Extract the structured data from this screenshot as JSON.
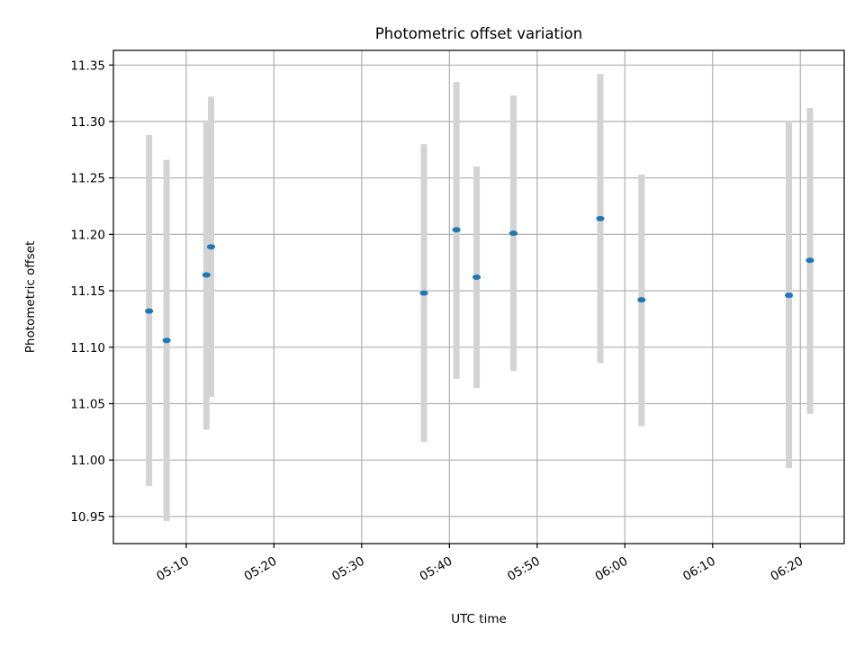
{
  "chart_data": {
    "type": "scatter",
    "title": "Photometric offset variation",
    "xlabel": "UTC time",
    "ylabel": "Photometric offset",
    "x_tick_labels": [
      "05:10",
      "05:20",
      "05:30",
      "05:40",
      "05:50",
      "06:00",
      "06:10",
      "06:20"
    ],
    "y_tick_labels": [
      "10.95",
      "11.00",
      "11.05",
      "11.10",
      "11.15",
      "11.20",
      "11.25",
      "11.30",
      "11.35"
    ],
    "grid": true,
    "series": [
      {
        "marker_color": "#1f77b4",
        "errorbar_color": "#d3d3d3",
        "points": [
          {
            "time": "05:05:46",
            "y": 11.132,
            "ymin": 10.977,
            "ymax": 11.288
          },
          {
            "time": "05:07:46",
            "y": 11.106,
            "ymin": 10.946,
            "ymax": 11.266
          },
          {
            "time": "05:12:18",
            "y": 11.164,
            "ymin": 11.027,
            "ymax": 11.301
          },
          {
            "time": "05:12:50",
            "y": 11.189,
            "ymin": 11.056,
            "ymax": 11.322
          },
          {
            "time": "05:37:06",
            "y": 11.148,
            "ymin": 11.016,
            "ymax": 11.28
          },
          {
            "time": "05:40:48",
            "y": 11.204,
            "ymin": 11.072,
            "ymax": 11.335
          },
          {
            "time": "05:43:06",
            "y": 11.162,
            "ymin": 11.064,
            "ymax": 11.26
          },
          {
            "time": "05:47:18",
            "y": 11.201,
            "ymin": 11.079,
            "ymax": 11.323
          },
          {
            "time": "05:57:12",
            "y": 11.214,
            "ymin": 11.086,
            "ymax": 11.342
          },
          {
            "time": "06:01:54",
            "y": 11.142,
            "ymin": 11.03,
            "ymax": 11.253
          },
          {
            "time": "06:18:42",
            "y": 11.146,
            "ymin": 10.993,
            "ymax": 11.3
          },
          {
            "time": "06:21:06",
            "y": 11.177,
            "ymin": 11.041,
            "ymax": 11.312
          }
        ]
      }
    ],
    "xlim": [
      "05:01:42",
      "06:25:00"
    ],
    "ylim": [
      10.926,
      11.363
    ]
  }
}
